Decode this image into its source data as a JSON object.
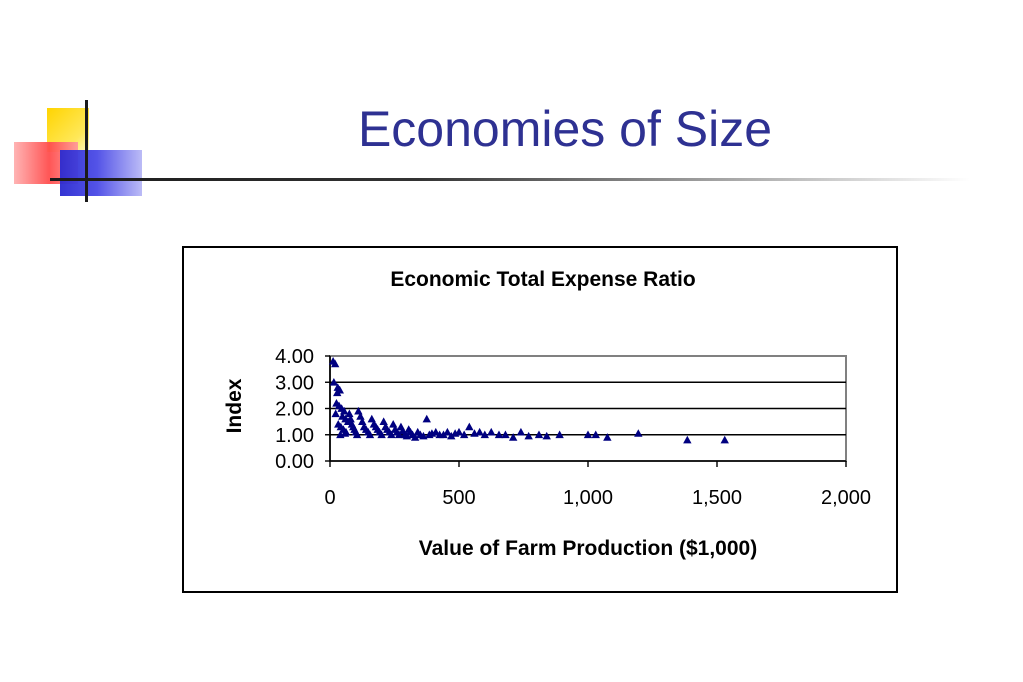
{
  "slide": {
    "title": "Economies of Size"
  },
  "chart_data": {
    "type": "scatter",
    "title": "Economic Total Expense Ratio",
    "xlabel": "Value of Farm Production ($1,000)",
    "ylabel": "Index",
    "xlim": [
      0,
      2000
    ],
    "ylim": [
      0,
      4
    ],
    "x_ticks": [
      0,
      500,
      1000,
      1500,
      2000
    ],
    "x_tick_labels": [
      "0",
      "500",
      "1,000",
      "1,500",
      "2,000"
    ],
    "y_ticks": [
      0,
      1,
      2,
      3,
      4
    ],
    "y_tick_labels": [
      "0.00",
      "1.00",
      "2.00",
      "3.00",
      "4.00"
    ],
    "grid": "horizontal major gridlines",
    "marker": "triangle",
    "marker_color": "#000080",
    "series": [
      {
        "points": [
          [
            12,
            3.8
          ],
          [
            20,
            3.7
          ],
          [
            15,
            3.0
          ],
          [
            30,
            2.8
          ],
          [
            38,
            2.7
          ],
          [
            28,
            2.6
          ],
          [
            25,
            2.2
          ],
          [
            35,
            2.1
          ],
          [
            45,
            2.0
          ],
          [
            55,
            1.9
          ],
          [
            22,
            1.8
          ],
          [
            48,
            1.7
          ],
          [
            60,
            1.6
          ],
          [
            70,
            1.5
          ],
          [
            32,
            1.4
          ],
          [
            42,
            1.3
          ],
          [
            52,
            1.2
          ],
          [
            62,
            1.1
          ],
          [
            40,
            1.0
          ],
          [
            58,
            1.05
          ],
          [
            75,
            1.8
          ],
          [
            80,
            1.6
          ],
          [
            85,
            1.4
          ],
          [
            90,
            1.3
          ],
          [
            95,
            1.2
          ],
          [
            100,
            1.1
          ],
          [
            105,
            1.0
          ],
          [
            110,
            1.9
          ],
          [
            118,
            1.7
          ],
          [
            125,
            1.5
          ],
          [
            132,
            1.3
          ],
          [
            140,
            1.2
          ],
          [
            148,
            1.1
          ],
          [
            155,
            1.0
          ],
          [
            162,
            1.6
          ],
          [
            170,
            1.4
          ],
          [
            178,
            1.3
          ],
          [
            185,
            1.2
          ],
          [
            192,
            1.1
          ],
          [
            200,
            1.0
          ],
          [
            208,
            1.5
          ],
          [
            215,
            1.3
          ],
          [
            222,
            1.2
          ],
          [
            230,
            1.1
          ],
          [
            238,
            1.0
          ],
          [
            245,
            1.4
          ],
          [
            252,
            1.2
          ],
          [
            260,
            1.1
          ],
          [
            268,
            1.0
          ],
          [
            275,
            1.3
          ],
          [
            282,
            1.15
          ],
          [
            290,
            1.0
          ],
          [
            298,
            0.95
          ],
          [
            305,
            1.2
          ],
          [
            312,
            1.1
          ],
          [
            320,
            1.0
          ],
          [
            330,
            0.9
          ],
          [
            340,
            1.1
          ],
          [
            350,
            1.0
          ],
          [
            362,
            0.95
          ],
          [
            375,
            1.6
          ],
          [
            385,
            1.0
          ],
          [
            395,
            1.05
          ],
          [
            410,
            1.1
          ],
          [
            425,
            1.0
          ],
          [
            440,
            1.0
          ],
          [
            455,
            1.1
          ],
          [
            470,
            0.95
          ],
          [
            485,
            1.05
          ],
          [
            500,
            1.1
          ],
          [
            520,
            1.0
          ],
          [
            540,
            1.3
          ],
          [
            560,
            1.05
          ],
          [
            580,
            1.1
          ],
          [
            600,
            1.0
          ],
          [
            625,
            1.1
          ],
          [
            655,
            1.0
          ],
          [
            680,
            1.0
          ],
          [
            710,
            0.9
          ],
          [
            740,
            1.1
          ],
          [
            770,
            0.95
          ],
          [
            810,
            1.0
          ],
          [
            840,
            0.95
          ],
          [
            890,
            1.0
          ],
          [
            1000,
            1.0
          ],
          [
            1030,
            1.0
          ],
          [
            1075,
            0.9
          ],
          [
            1195,
            1.05
          ],
          [
            1385,
            0.8
          ],
          [
            1530,
            0.8
          ]
        ]
      }
    ]
  }
}
